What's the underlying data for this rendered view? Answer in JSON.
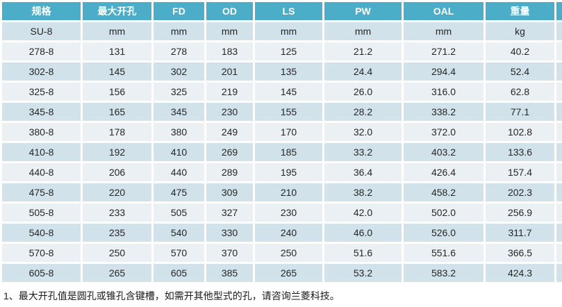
{
  "colors": {
    "header_bg": "#4badc7",
    "band_dark": "#d2e2ea",
    "band_light": "#ebf0f4",
    "header_text": "#ffffff",
    "body_text": "#262626"
  },
  "table": {
    "columns": [
      "规格",
      "最大开孔",
      "FD",
      "OD",
      "LS",
      "PW",
      "OAL",
      "重量"
    ],
    "unit_row": [
      "SU-8",
      "mm",
      "mm",
      "mm",
      "mm",
      "mm",
      "mm",
      "kg"
    ],
    "rows": [
      [
        "278-8",
        "131",
        "278",
        "183",
        "125",
        "21.2",
        "271.2",
        "40.2"
      ],
      [
        "302-8",
        "145",
        "302",
        "201",
        "135",
        "24.4",
        "294.4",
        "52.4"
      ],
      [
        "325-8",
        "156",
        "325",
        "219",
        "145",
        "26.0",
        "316.0",
        "62.8"
      ],
      [
        "345-8",
        "165",
        "345",
        "230",
        "155",
        "28.2",
        "338.2",
        "77.1"
      ],
      [
        "380-8",
        "178",
        "380",
        "249",
        "170",
        "32.0",
        "372.0",
        "102.8"
      ],
      [
        "410-8",
        "192",
        "410",
        "269",
        "185",
        "33.2",
        "403.2",
        "133.6"
      ],
      [
        "440-8",
        "206",
        "440",
        "289",
        "195",
        "36.4",
        "426.4",
        "157.4"
      ],
      [
        "475-8",
        "220",
        "475",
        "309",
        "210",
        "38.2",
        "458.2",
        "202.3"
      ],
      [
        "505-8",
        "233",
        "505",
        "327",
        "230",
        "42.0",
        "502.0",
        "256.9"
      ],
      [
        "540-8",
        "235",
        "540",
        "330",
        "240",
        "46.0",
        "526.0",
        "311.7"
      ],
      [
        "570-8",
        "250",
        "570",
        "370",
        "250",
        "51.6",
        "551.6",
        "366.5"
      ],
      [
        "605-8",
        "265",
        "605",
        "385",
        "265",
        "53.2",
        "583.2",
        "424.3"
      ]
    ]
  },
  "footnote": "1、最大开孔值是圆孔或锥孔含键槽，如需开其他型式的孔，请咨询兰菱科技。"
}
